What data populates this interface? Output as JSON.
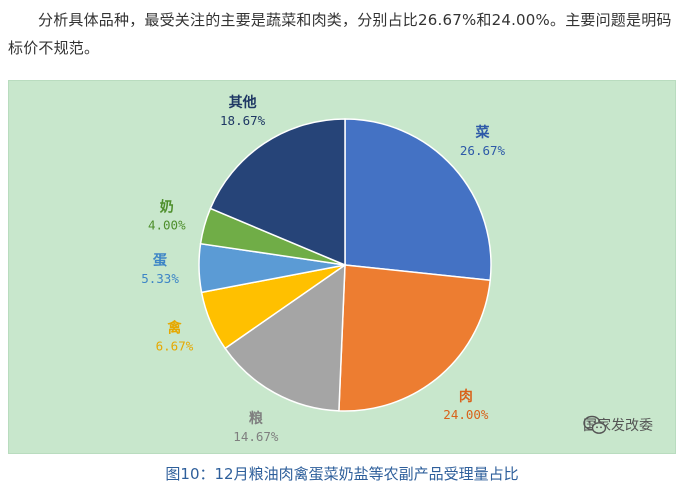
{
  "article": {
    "intro_text": "分析具体品种，最受关注的主要是蔬菜和肉类，分别占比26.67%和24.00%。主要问题是明码标价不规范。"
  },
  "watermark": {
    "text": "国家发改委",
    "icon": "wechat-icon"
  },
  "caption": "图10：12月粮油肉禽蛋菜奶盐等农副产品受理量占比",
  "chart_data": {
    "type": "pie",
    "title": "",
    "start": "12 o'clock, clockwise",
    "slices": [
      {
        "label": "菜",
        "value": 26.67,
        "value_label": "26.67%",
        "color": "#4472c4",
        "label_color": "#2e5aa8"
      },
      {
        "label": "肉",
        "value": 24.0,
        "value_label": "24.00%",
        "color": "#ed7d31",
        "label_color": "#d9621a"
      },
      {
        "label": "粮",
        "value": 14.67,
        "value_label": "14.67%",
        "color": "#a5a5a5",
        "label_color": "#7f7f7f"
      },
      {
        "label": "禽",
        "value": 6.67,
        "value_label": "6.67%",
        "color": "#ffc000",
        "label_color": "#e6a800"
      },
      {
        "label": "蛋",
        "value": 5.33,
        "value_label": "5.33%",
        "color": "#5b9bd5",
        "label_color": "#3d85c6"
      },
      {
        "label": "奶",
        "value": 4.0,
        "value_label": "4.00%",
        "color": "#70ad47",
        "label_color": "#4e8f2c"
      },
      {
        "label": "其他",
        "value": 18.67,
        "value_label": "18.67%",
        "color": "#264478",
        "label_color": "#1f3864"
      }
    ]
  }
}
